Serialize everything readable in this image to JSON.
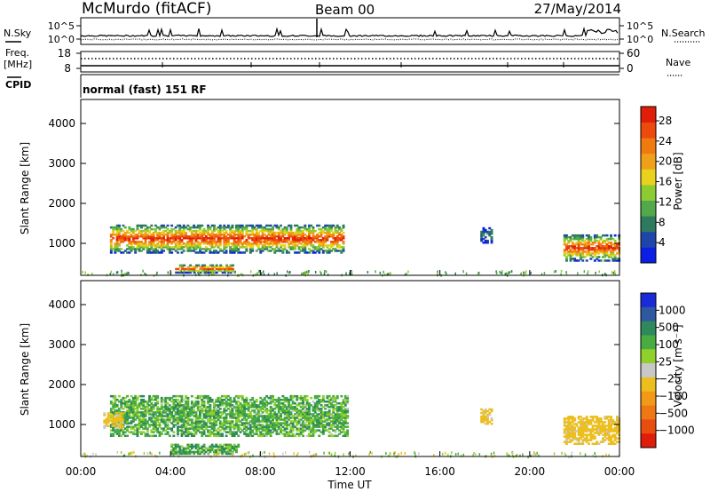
{
  "header": {
    "station": "McMurdo (fitACF)",
    "beam": "Beam 00",
    "date": "27/May/2014"
  },
  "strip": {
    "nsky_label": "N.Sky",
    "nsearch_label": "N.Search",
    "freq_label": "Freq.",
    "freq_unit": "[MHz]",
    "nave_label": "Nave",
    "cpid_label": "CPID",
    "cpid_text": "normal (fast) 151 RF",
    "noise_ticks": [
      "10^5",
      "10^0"
    ],
    "freq_ticks": [
      "18",
      "8"
    ],
    "nave_ticks": [
      "60",
      "0"
    ]
  },
  "axes": {
    "ylabel": "Slant Range [km]",
    "xlabel": "Time UT",
    "x_ticks": [
      "00:00",
      "04:00",
      "08:00",
      "12:00",
      "16:00",
      "20:00",
      "00:00"
    ],
    "y_ticks": [
      "1000",
      "2000",
      "3000",
      "4000"
    ],
    "ylim": [
      200,
      4600
    ],
    "xlim_hours": [
      0,
      24
    ]
  },
  "colorbars": {
    "power": {
      "label": "Power [dB]",
      "ticks": [
        "4",
        "8",
        "12",
        "16",
        "20",
        "24",
        "28"
      ],
      "colors": [
        "#0a1ee6",
        "#1e46a8",
        "#2e7a5e",
        "#52a84a",
        "#8ccc32",
        "#e8d21e",
        "#f0a018",
        "#f07a10",
        "#ee4a0c",
        "#e01e0a"
      ]
    },
    "velocity": {
      "label": "Velocity [m s⁻¹]",
      "ticks": [
        "1000",
        "500",
        "100",
        "25",
        "−25",
        "−100",
        "−500",
        "−1000"
      ],
      "colors": [
        "#1a2ad8",
        "#2e58a0",
        "#2e8a5c",
        "#48ac42",
        "#90d02c",
        "#c8c8c8",
        "#ecbe1e",
        "#f29a18",
        "#f07814",
        "#e84e0e",
        "#e01c0a"
      ]
    }
  },
  "chart_data": [
    {
      "type": "heatmap",
      "quantity": "Power",
      "unit": "dB",
      "title": "",
      "xlabel": "Time UT",
      "ylabel": "Slant Range [km]",
      "x_range_hours": [
        0,
        24
      ],
      "y_range_km": [
        200,
        4600
      ],
      "color_range": [
        0,
        30
      ],
      "regions": [
        {
          "t0": 1.3,
          "t1": 11.7,
          "r0": 750,
          "r1": 1450,
          "peak": 28
        },
        {
          "t0": 4.2,
          "t1": 6.8,
          "r0": 250,
          "r1": 450,
          "peak": 27
        },
        {
          "t0": 17.8,
          "t1": 18.3,
          "r0": 1000,
          "r1": 1400,
          "peak": 8
        },
        {
          "t0": 21.5,
          "t1": 24.0,
          "r0": 550,
          "r1": 1200,
          "peak": 28
        }
      ]
    },
    {
      "type": "heatmap",
      "quantity": "Velocity",
      "unit": "m s-1",
      "title": "",
      "xlabel": "Time UT",
      "ylabel": "Slant Range [km]",
      "x_range_hours": [
        0,
        24
      ],
      "y_range_km": [
        200,
        4600
      ],
      "color_range": [
        -1000,
        1000
      ],
      "regions": [
        {
          "t0": 1.3,
          "t1": 11.9,
          "r0": 700,
          "r1": 1700,
          "typical": 60
        },
        {
          "t0": 1.0,
          "t1": 1.9,
          "r0": 900,
          "r1": 1300,
          "typical": -150
        },
        {
          "t0": 4.0,
          "t1": 7.0,
          "r0": 250,
          "r1": 500,
          "typical": 80
        },
        {
          "t0": 17.8,
          "t1": 18.3,
          "r0": 1000,
          "r1": 1400,
          "typical": -150
        },
        {
          "t0": 21.5,
          "t1": 24.0,
          "r0": 500,
          "r1": 1200,
          "typical": -180
        }
      ]
    }
  ]
}
